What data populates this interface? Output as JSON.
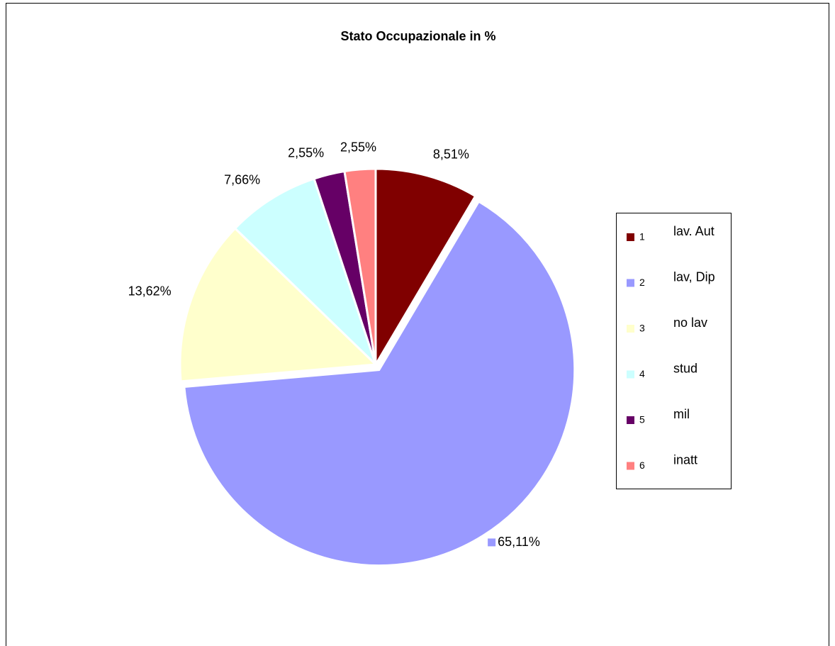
{
  "chart_data": {
    "type": "pie",
    "title": "Stato Occupazionale in %",
    "categories": [
      "1",
      "2",
      "3",
      "4",
      "5",
      "6"
    ],
    "category_names": [
      "lav. Aut",
      "lav, Dip",
      "no lav",
      "stud",
      "mil",
      "inatt"
    ],
    "values": [
      8.51,
      65.11,
      13.62,
      7.66,
      2.55,
      2.55
    ],
    "value_labels": [
      "8,51%",
      "65,11%",
      "13,62%",
      "7,66%",
      "2,55%",
      "2,55%"
    ],
    "colors": [
      "#800000",
      "#9999ff",
      "#ffffcc",
      "#ccffff",
      "#660066",
      "#ff8080"
    ],
    "exploded": [
      false,
      true,
      false,
      false,
      false,
      false
    ],
    "legend": "right"
  }
}
